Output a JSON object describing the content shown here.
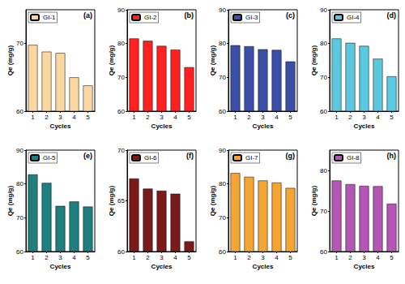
{
  "chart_data": [
    {
      "type": "bar",
      "title": "(a)",
      "x_label": "Cycles",
      "y_label": "Qe (mg/g)",
      "categories": [
        "1",
        "2",
        "3",
        "4",
        "5"
      ],
      "series": [
        {
          "name": "GI-1",
          "color": "#fad7a0",
          "values": [
            69.8,
            68.8,
            68.6,
            65.0,
            63.8
          ]
        }
      ],
      "ylim": [
        60,
        75
      ],
      "yticks": [
        60,
        70
      ],
      "grid": false,
      "legend": "upper left"
    },
    {
      "type": "bar",
      "title": "(b)",
      "x_label": "Cycles",
      "y_label": "Qe (mg/g)",
      "categories": [
        "1",
        "2",
        "3",
        "4",
        "5"
      ],
      "series": [
        {
          "name": "GI-2",
          "color": "#ff2020",
          "values": [
            81.5,
            80.8,
            79.3,
            78.2,
            73.0
          ]
        }
      ],
      "ylim": [
        60,
        90
      ],
      "yticks": [
        60,
        70,
        80,
        90
      ],
      "grid": false,
      "legend": "upper left"
    },
    {
      "type": "bar",
      "title": "(c)",
      "x_label": "Cycles",
      "y_label": "Qe (mg/g)",
      "categories": [
        "1",
        "2",
        "3",
        "4",
        "5"
      ],
      "series": [
        {
          "name": "GI-3",
          "color": "#3a4fa8",
          "values": [
            79.5,
            79.2,
            78.3,
            78.1,
            74.7
          ]
        }
      ],
      "ylim": [
        60,
        90
      ],
      "yticks": [
        60,
        70,
        80,
        90
      ],
      "grid": false,
      "legend": "upper left"
    },
    {
      "type": "bar",
      "title": "(d)",
      "x_label": "Cycles",
      "y_label": "Qe (mg/g)",
      "categories": [
        "1",
        "2",
        "3",
        "4",
        "5"
      ],
      "series": [
        {
          "name": "GI-4",
          "color": "#5bc8e0",
          "values": [
            81.5,
            80.2,
            79.3,
            75.5,
            70.3
          ]
        }
      ],
      "ylim": [
        60,
        90
      ],
      "yticks": [
        60,
        70,
        80,
        90
      ],
      "grid": false,
      "legend": "upper left"
    },
    {
      "type": "bar",
      "title": "(e)",
      "x_label": "Cycles",
      "y_label": "Qe (mg/g)",
      "categories": [
        "1",
        "2",
        "3",
        "4",
        "5"
      ],
      "series": [
        {
          "name": "GI-5",
          "color": "#1f7f7f",
          "values": [
            82.8,
            80.3,
            73.5,
            74.8,
            73.3
          ]
        }
      ],
      "ylim": [
        60,
        90
      ],
      "yticks": [
        60,
        70,
        80,
        90
      ],
      "grid": false,
      "legend": "upper left"
    },
    {
      "type": "bar",
      "title": "(f)",
      "x_label": "Cycles",
      "y_label": "Qe (mg/g)",
      "categories": [
        "1",
        "2",
        "3",
        "4",
        "5"
      ],
      "series": [
        {
          "name": "GI-6",
          "color": "#7b1a1a",
          "values": [
            67.2,
            66.2,
            66.0,
            65.7,
            61.0
          ]
        }
      ],
      "ylim": [
        60,
        70
      ],
      "yticks": [
        60,
        65,
        70
      ],
      "grid": false,
      "legend": "upper left"
    },
    {
      "type": "bar",
      "title": "(g)",
      "x_label": "Cycles",
      "y_label": "Qe (mg/g)",
      "categories": [
        "1",
        "2",
        "3",
        "4",
        "5"
      ],
      "series": [
        {
          "name": "GI-7",
          "color": "#f4a533",
          "values": [
            83.2,
            82.1,
            81.0,
            80.4,
            78.8
          ]
        }
      ],
      "ylim": [
        60,
        90
      ],
      "yticks": [
        60,
        70,
        80,
        90
      ],
      "grid": false,
      "legend": "upper left"
    },
    {
      "type": "bar",
      "title": "(h)",
      "x_label": "Cycles",
      "y_label": "Qe (mg/g)",
      "categories": [
        "1",
        "2",
        "3",
        "4",
        "5"
      ],
      "series": [
        {
          "name": "GI-8",
          "color": "#b456b4",
          "values": [
            77.5,
            76.6,
            76.2,
            76.1,
            71.8
          ]
        }
      ],
      "ylim": [
        60,
        85
      ],
      "yticks": [
        60,
        70,
        80
      ],
      "grid": false,
      "legend": "upper left"
    }
  ]
}
